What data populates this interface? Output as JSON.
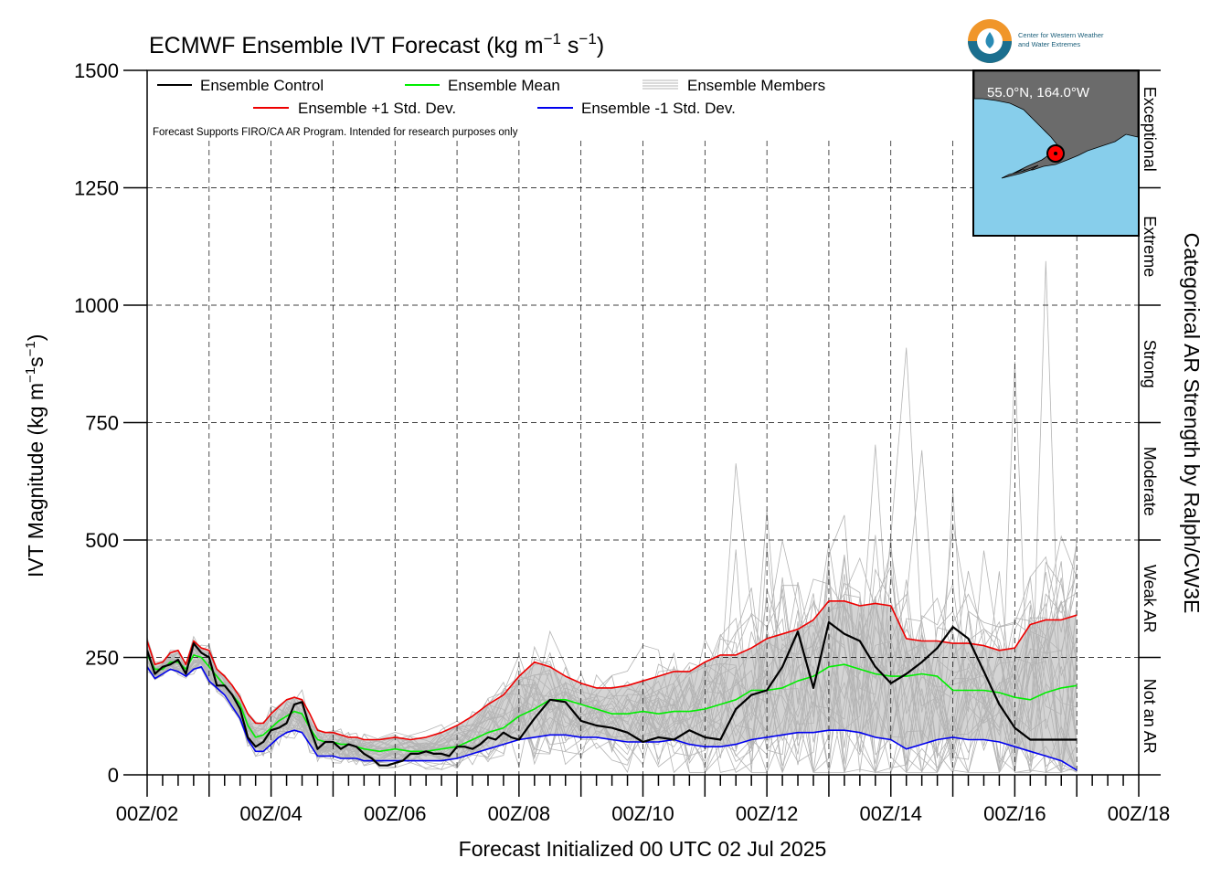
{
  "chart_data": {
    "type": "line",
    "title": "ECMWF Ensemble IVT Forecast (kg m",
    "title_sup1": "−1",
    "title_mid": " s",
    "title_sup2": "−1",
    "title_end": ")",
    "ylabel": "IVT Magnitude (kg m",
    "ylabel_sup1": "−1",
    "ylabel_mid": "s",
    "ylabel_sup2": "−1",
    "ylabel_end": ")",
    "xlabel": "Forecast Initialized 00 UTC 02 Jul 2025",
    "right_label": "Categorical AR Strength by Ralph/CW3E",
    "note": "Forecast Supports FIRO/CA AR Program. Intended for research purposes only",
    "ylim": [
      0,
      1500
    ],
    "xlim": [
      0,
      384
    ],
    "grid": true,
    "yticks": [
      "0",
      "250",
      "500",
      "750",
      "1000",
      "1250",
      "1500"
    ],
    "xticks": [
      "00Z/02",
      "00Z/04",
      "00Z/06",
      "00Z/08",
      "00Z/10",
      "00Z/12",
      "00Z/14",
      "00Z/16",
      "00Z/18"
    ],
    "categories": [
      {
        "label": "Not an AR",
        "range": [
          0,
          250
        ]
      },
      {
        "label": "Weak AR",
        "range": [
          250,
          500
        ]
      },
      {
        "label": "Moderate",
        "range": [
          500,
          750
        ]
      },
      {
        "label": "Strong",
        "range": [
          750,
          1000
        ]
      },
      {
        "label": "Extreme",
        "range": [
          1000,
          1250
        ]
      },
      {
        "label": "Exceptional",
        "range": [
          1250,
          1500
        ]
      }
    ],
    "legend": {
      "position": "top-left",
      "control": "Ensemble Control",
      "mean": "Ensemble Mean",
      "members": "Ensemble Members",
      "plus": "Ensemble +1 Std. Dev.",
      "minus": "Ensemble -1 Std. Dev."
    },
    "colors": {
      "control": "#000000",
      "mean": "#00ee00",
      "members": "#b4b4b4",
      "plus": "#ee0000",
      "minus": "#0000ee",
      "band": "#d4d4d4",
      "map_ocean": "#87ceeb",
      "map_land": "#6b6b6b",
      "marker": "#ff0000"
    },
    "inset_map": {
      "label": "55.0°N, 164.0°W",
      "lat": 55.0,
      "lon": -164.0
    },
    "logo": {
      "line1": "Center for Western Weather",
      "line2": "and Water Extremes"
    },
    "series": [
      {
        "name": "Ensemble Control",
        "x": [
          0,
          3,
          6,
          9,
          12,
          15,
          18,
          21,
          24,
          27,
          30,
          33,
          36,
          39,
          42,
          45,
          48,
          51,
          54,
          57,
          60,
          63,
          66,
          69,
          72,
          75,
          78,
          81,
          84,
          87,
          90,
          93,
          96,
          99,
          102,
          105,
          108,
          111,
          114,
          117,
          120,
          123,
          126,
          129,
          132,
          135,
          138,
          141,
          144,
          150,
          156,
          162,
          168,
          174,
          180,
          186,
          192,
          198,
          204,
          210,
          216,
          222,
          228,
          234,
          240,
          246,
          252,
          258,
          264,
          270,
          276,
          282,
          288,
          294,
          300,
          306,
          312,
          318,
          324,
          330,
          336,
          342,
          348,
          354,
          360
        ],
        "y": [
          265,
          215,
          230,
          235,
          245,
          215,
          280,
          260,
          250,
          190,
          190,
          170,
          140,
          80,
          60,
          70,
          95,
          100,
          110,
          150,
          155,
          100,
          55,
          70,
          70,
          55,
          65,
          60,
          45,
          35,
          20,
          20,
          25,
          30,
          45,
          45,
          50,
          45,
          45,
          40,
          60,
          60,
          55,
          65,
          80,
          75,
          90,
          80,
          75,
          120,
          160,
          155,
          115,
          105,
          100,
          90,
          70,
          80,
          75,
          95,
          80,
          75,
          140,
          170,
          180,
          230,
          305,
          185,
          325,
          300,
          285,
          230,
          195,
          215,
          240,
          270,
          315,
          290,
          220,
          150,
          100,
          75,
          75,
          75,
          75
        ]
      },
      {
        "name": "Ensemble Mean",
        "x": [
          0,
          3,
          6,
          9,
          12,
          15,
          18,
          21,
          24,
          27,
          30,
          33,
          36,
          39,
          42,
          45,
          48,
          51,
          54,
          57,
          60,
          63,
          66,
          69,
          72,
          75,
          78,
          81,
          84,
          90,
          96,
          102,
          108,
          114,
          120,
          126,
          132,
          138,
          144,
          150,
          156,
          162,
          168,
          174,
          180,
          186,
          192,
          198,
          204,
          210,
          216,
          222,
          228,
          234,
          240,
          246,
          252,
          258,
          264,
          270,
          276,
          282,
          288,
          294,
          300,
          306,
          312,
          318,
          324,
          330,
          336,
          342,
          348,
          354,
          360
        ],
        "y": [
          255,
          225,
          225,
          240,
          240,
          225,
          255,
          250,
          230,
          210,
          190,
          170,
          150,
          105,
          80,
          85,
          100,
          115,
          125,
          135,
          130,
          100,
          75,
          70,
          70,
          65,
          65,
          60,
          55,
          50,
          55,
          50,
          50,
          55,
          60,
          75,
          90,
          100,
          125,
          140,
          160,
          160,
          150,
          140,
          130,
          130,
          135,
          130,
          135,
          135,
          140,
          150,
          160,
          180,
          180,
          185,
          200,
          210,
          230,
          235,
          225,
          215,
          210,
          210,
          215,
          210,
          180,
          180,
          180,
          175,
          165,
          160,
          175,
          185,
          190
        ]
      },
      {
        "name": "Ensemble +1 Std. Dev.",
        "x": [
          0,
          3,
          6,
          9,
          12,
          15,
          18,
          21,
          24,
          27,
          30,
          33,
          36,
          39,
          42,
          45,
          48,
          51,
          54,
          57,
          60,
          63,
          66,
          69,
          72,
          75,
          78,
          81,
          84,
          90,
          96,
          102,
          108,
          114,
          120,
          126,
          132,
          138,
          144,
          150,
          156,
          162,
          168,
          174,
          180,
          186,
          192,
          198,
          204,
          210,
          216,
          222,
          228,
          234,
          240,
          246,
          252,
          258,
          264,
          270,
          276,
          282,
          288,
          294,
          300,
          306,
          312,
          318,
          324,
          330,
          336,
          342,
          348,
          354,
          360
        ],
        "y": [
          285,
          235,
          240,
          260,
          265,
          235,
          285,
          270,
          265,
          225,
          210,
          190,
          165,
          130,
          110,
          110,
          130,
          145,
          160,
          165,
          160,
          130,
          95,
          90,
          90,
          85,
          80,
          80,
          75,
          75,
          80,
          75,
          80,
          90,
          105,
          125,
          150,
          170,
          210,
          240,
          230,
          210,
          195,
          185,
          185,
          190,
          200,
          210,
          220,
          220,
          240,
          255,
          255,
          270,
          290,
          300,
          310,
          330,
          370,
          370,
          360,
          365,
          360,
          290,
          285,
          285,
          280,
          280,
          275,
          265,
          270,
          320,
          330,
          330,
          340
        ]
      },
      {
        "name": "Ensemble -1 Std. Dev.",
        "x": [
          0,
          3,
          6,
          9,
          12,
          15,
          18,
          21,
          24,
          27,
          30,
          33,
          36,
          39,
          42,
          45,
          48,
          51,
          54,
          57,
          60,
          63,
          66,
          69,
          72,
          75,
          78,
          81,
          84,
          90,
          96,
          102,
          108,
          114,
          120,
          126,
          132,
          138,
          144,
          150,
          156,
          162,
          168,
          174,
          180,
          186,
          192,
          198,
          204,
          210,
          216,
          222,
          228,
          234,
          240,
          246,
          252,
          258,
          264,
          270,
          276,
          282,
          288,
          294,
          300,
          306,
          312,
          318,
          324,
          330,
          336,
          342,
          348,
          354,
          360
        ],
        "y": [
          230,
          205,
          215,
          225,
          220,
          210,
          225,
          230,
          200,
          185,
          170,
          145,
          120,
          75,
          50,
          50,
          65,
          80,
          90,
          95,
          90,
          65,
          40,
          40,
          40,
          35,
          35,
          35,
          30,
          30,
          30,
          30,
          30,
          30,
          35,
          45,
          55,
          65,
          75,
          80,
          85,
          85,
          80,
          80,
          75,
          70,
          70,
          70,
          75,
          65,
          60,
          60,
          65,
          75,
          80,
          85,
          90,
          90,
          95,
          95,
          90,
          80,
          75,
          55,
          65,
          75,
          80,
          75,
          75,
          70,
          60,
          50,
          40,
          30,
          10
        ]
      }
    ]
  }
}
